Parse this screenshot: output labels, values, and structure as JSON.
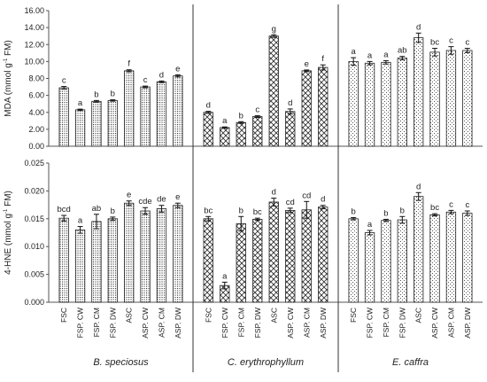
{
  "chart_data": [
    {
      "type": "bar",
      "ylabel": "MDA (mmol g",
      "ylabel_sup": "-1",
      "ylabel_end": " FM)",
      "ylim": [
        0,
        16
      ],
      "ytick_labels": [
        "0.00",
        "2.00",
        "4.00",
        "6.00",
        "8.00",
        "10.00",
        "12.00",
        "14.00",
        "16.00"
      ],
      "grid": false,
      "groups": [
        {
          "name": "B. speciosus",
          "values": [
            6.9,
            4.3,
            5.3,
            5.4,
            8.9,
            7.0,
            7.6,
            8.3
          ],
          "errors": [
            0.15,
            0.08,
            0.1,
            0.08,
            0.12,
            0.1,
            0.1,
            0.12
          ],
          "letters": [
            "c",
            "a",
            "b",
            "b",
            "f",
            "c",
            "d",
            "e"
          ]
        },
        {
          "name": "C. erythrophyllum",
          "values": [
            4.0,
            2.2,
            2.8,
            3.5,
            13.0,
            4.1,
            8.9,
            9.3
          ],
          "errors": [
            0.12,
            0.08,
            0.1,
            0.1,
            0.15,
            0.3,
            0.1,
            0.3
          ],
          "letters": [
            "d",
            "a",
            "b",
            "c",
            "g",
            "d",
            "e",
            "f"
          ]
        },
        {
          "name": "E. caffra",
          "values": [
            10.0,
            9.8,
            9.9,
            10.4,
            12.8,
            11.1,
            11.3,
            11.3
          ],
          "errors": [
            0.45,
            0.2,
            0.2,
            0.2,
            0.55,
            0.45,
            0.45,
            0.25
          ],
          "letters": [
            "a",
            "a",
            "a",
            "ab",
            "d",
            "bc",
            "c",
            "c"
          ]
        }
      ]
    },
    {
      "type": "bar",
      "ylabel": "4-HNE (mmol g",
      "ylabel_sup": "-1",
      "ylabel_end": " FM)",
      "ylim": [
        0,
        0.025
      ],
      "ytick_labels": [
        "0.000",
        "0.005",
        "0.010",
        "0.015",
        "0.020",
        "0.025"
      ],
      "grid": false,
      "groups": [
        {
          "name": "B. speciosus",
          "values": [
            0.0151,
            0.013,
            0.0145,
            0.015,
            0.0178,
            0.0164,
            0.0168,
            0.0174
          ],
          "errors": [
            0.0005,
            0.0006,
            0.0013,
            0.0003,
            0.0004,
            0.0006,
            0.0006,
            0.0004
          ],
          "letters": [
            "bcd",
            "a",
            "ab",
            "b",
            "e",
            "cde",
            "de",
            "e"
          ]
        },
        {
          "name": "C. erythrophyllum",
          "values": [
            0.015,
            0.003,
            0.0141,
            0.0149,
            0.018,
            0.0165,
            0.0166,
            0.0171
          ],
          "errors": [
            0.0004,
            0.0006,
            0.0013,
            0.0002,
            0.0007,
            0.0004,
            0.0015,
            0.0003
          ],
          "letters": [
            "bc",
            "a",
            "b",
            "bc",
            "d",
            "cd",
            "cd",
            "d"
          ]
        },
        {
          "name": "E. caffra",
          "values": [
            0.015,
            0.0125,
            0.0147,
            0.0148,
            0.019,
            0.0157,
            0.0162,
            0.016
          ],
          "errors": [
            0.0002,
            0.0004,
            0.0002,
            0.0006,
            0.0007,
            0.0002,
            0.0003,
            0.0004
          ],
          "letters": [
            "b",
            "a",
            "b",
            "b",
            "d",
            "bc",
            "c",
            "c"
          ]
        }
      ]
    }
  ],
  "categories": [
    "FSC",
    "FSP. CW",
    "FSP. CM",
    "FSP. DW",
    "ASC",
    "ASP. CW",
    "ASP. CM",
    "ASP. DW"
  ],
  "bar_fill": {
    "B. speciosus": "dots",
    "C. erythrophyllum": "diagonal-crosshatch",
    "E. caffra": "fine-dots"
  },
  "colors": {
    "bar_stroke": "#222222",
    "axis": "#555555",
    "background": "#ffffff"
  }
}
